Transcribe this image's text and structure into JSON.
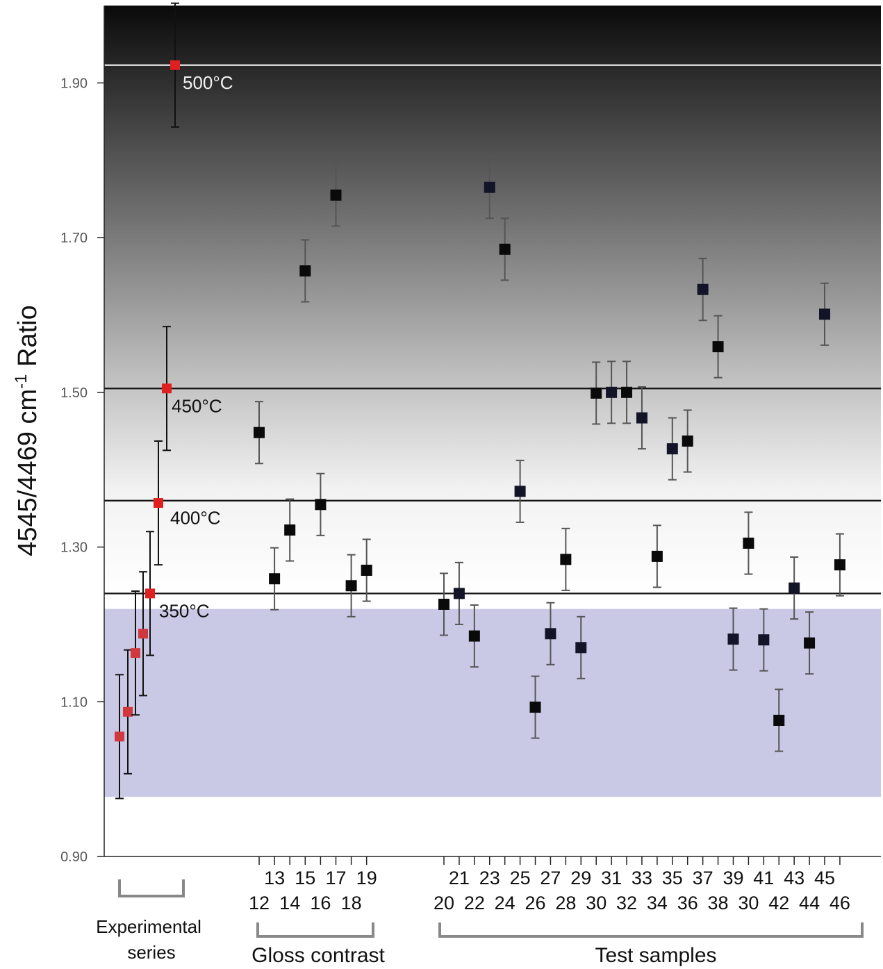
{
  "chart_data": {
    "type": "scatter",
    "ylabel": "4545/4469 cm-1 Ratio",
    "ylabel_parts": {
      "main": "4545/4469 cm",
      "sup": "-1",
      "rest": " Ratio"
    },
    "ylim": [
      0.9,
      2.0
    ],
    "yticks": [
      0.9,
      1.1,
      1.3,
      1.5,
      1.7,
      1.9
    ],
    "ytick_labels": [
      "0.90",
      "1.10",
      "1.30",
      "1.50",
      "1.70",
      "1.90"
    ],
    "x_top_row": [
      "13",
      "15",
      "17",
      "19",
      "21",
      "23",
      "25",
      "27",
      "29",
      "31",
      "33",
      "35",
      "37",
      "39",
      "41",
      "43",
      "45"
    ],
    "x_bottom_row": [
      "12",
      "14",
      "16",
      "18",
      "20",
      "22",
      "24",
      "26",
      "28",
      "30",
      "32",
      "34",
      "36",
      "38",
      "30",
      "42",
      "44",
      "46"
    ],
    "reference_lines": [
      {
        "label": "500°C",
        "value": 1.923
      },
      {
        "label": "450°C",
        "value": 1.505
      },
      {
        "label": "400°C",
        "value": 1.36
      },
      {
        "label": "350°C",
        "value": 1.24
      }
    ],
    "blue_band": [
      0.977,
      1.22
    ],
    "colors": {
      "experimental": "#d0383f",
      "experimental_high": "#e02020",
      "sample": "#0a0a0a",
      "band": "#c9c9e6"
    },
    "groups": [
      {
        "label": "Experimental series"
      },
      {
        "label": "Gloss contrast"
      },
      {
        "label": "Test samples"
      }
    ],
    "series": [
      {
        "group": "Experimental series",
        "points": [
          {
            "y": 1.055,
            "err": 0.08
          },
          {
            "y": 1.087,
            "err": 0.08
          },
          {
            "y": 1.163,
            "err": 0.08
          },
          {
            "y": 1.188,
            "err": 0.08
          },
          {
            "y": 1.24,
            "err": 0.08
          },
          {
            "y": 1.357,
            "err": 0.08
          },
          {
            "y": 1.505,
            "err": 0.08
          },
          {
            "y": 1.923,
            "err": 0.08
          }
        ]
      },
      {
        "group": "Gloss contrast",
        "points": [
          {
            "sample": "12",
            "y": 1.448,
            "err": 0.04
          },
          {
            "sample": "13",
            "y": 1.259,
            "err": 0.04
          },
          {
            "sample": "14",
            "y": 1.322,
            "err": 0.04
          },
          {
            "sample": "15",
            "y": 1.657,
            "err": 0.04
          },
          {
            "sample": "16",
            "y": 1.355,
            "err": 0.04
          },
          {
            "sample": "17",
            "y": 1.755,
            "err": 0.04
          },
          {
            "sample": "18",
            "y": 1.25,
            "err": 0.04
          },
          {
            "sample": "19",
            "y": 1.27,
            "err": 0.04
          }
        ]
      },
      {
        "group": "Test samples",
        "points": [
          {
            "sample": "20",
            "y": 1.226,
            "err": 0.04
          },
          {
            "sample": "21",
            "y": 1.24,
            "err": 0.04
          },
          {
            "sample": "22",
            "y": 1.185,
            "err": 0.04
          },
          {
            "sample": "23",
            "y": 1.765,
            "err": 0.04
          },
          {
            "sample": "24",
            "y": 1.685,
            "err": 0.04
          },
          {
            "sample": "25",
            "y": 1.372,
            "err": 0.04
          },
          {
            "sample": "26",
            "y": 1.093,
            "err": 0.04
          },
          {
            "sample": "27",
            "y": 1.188,
            "err": 0.04
          },
          {
            "sample": "28",
            "y": 1.284,
            "err": 0.04
          },
          {
            "sample": "29",
            "y": 1.17,
            "err": 0.04
          },
          {
            "sample": "30",
            "y": 1.499,
            "err": 0.04
          },
          {
            "sample": "31",
            "y": 1.5,
            "err": 0.04
          },
          {
            "sample": "32",
            "y": 1.5,
            "err": 0.04
          },
          {
            "sample": "33",
            "y": 1.467,
            "err": 0.04
          },
          {
            "sample": "34",
            "y": 1.288,
            "err": 0.04
          },
          {
            "sample": "35",
            "y": 1.427,
            "err": 0.04
          },
          {
            "sample": "36",
            "y": 1.437,
            "err": 0.04
          },
          {
            "sample": "37",
            "y": 1.633,
            "err": 0.04
          },
          {
            "sample": "38",
            "y": 1.559,
            "err": 0.04
          },
          {
            "sample": "39",
            "y": 1.181,
            "err": 0.04
          },
          {
            "sample": "30",
            "y": 1.305,
            "err": 0.04
          },
          {
            "sample": "41",
            "y": 1.18,
            "err": 0.04
          },
          {
            "sample": "42",
            "y": 1.076,
            "err": 0.04
          },
          {
            "sample": "43",
            "y": 1.247,
            "err": 0.04
          },
          {
            "sample": "44",
            "y": 1.176,
            "err": 0.04
          },
          {
            "sample": "45",
            "y": 1.601,
            "err": 0.04
          },
          {
            "sample": "46",
            "y": 1.277,
            "err": 0.04
          }
        ]
      }
    ]
  }
}
